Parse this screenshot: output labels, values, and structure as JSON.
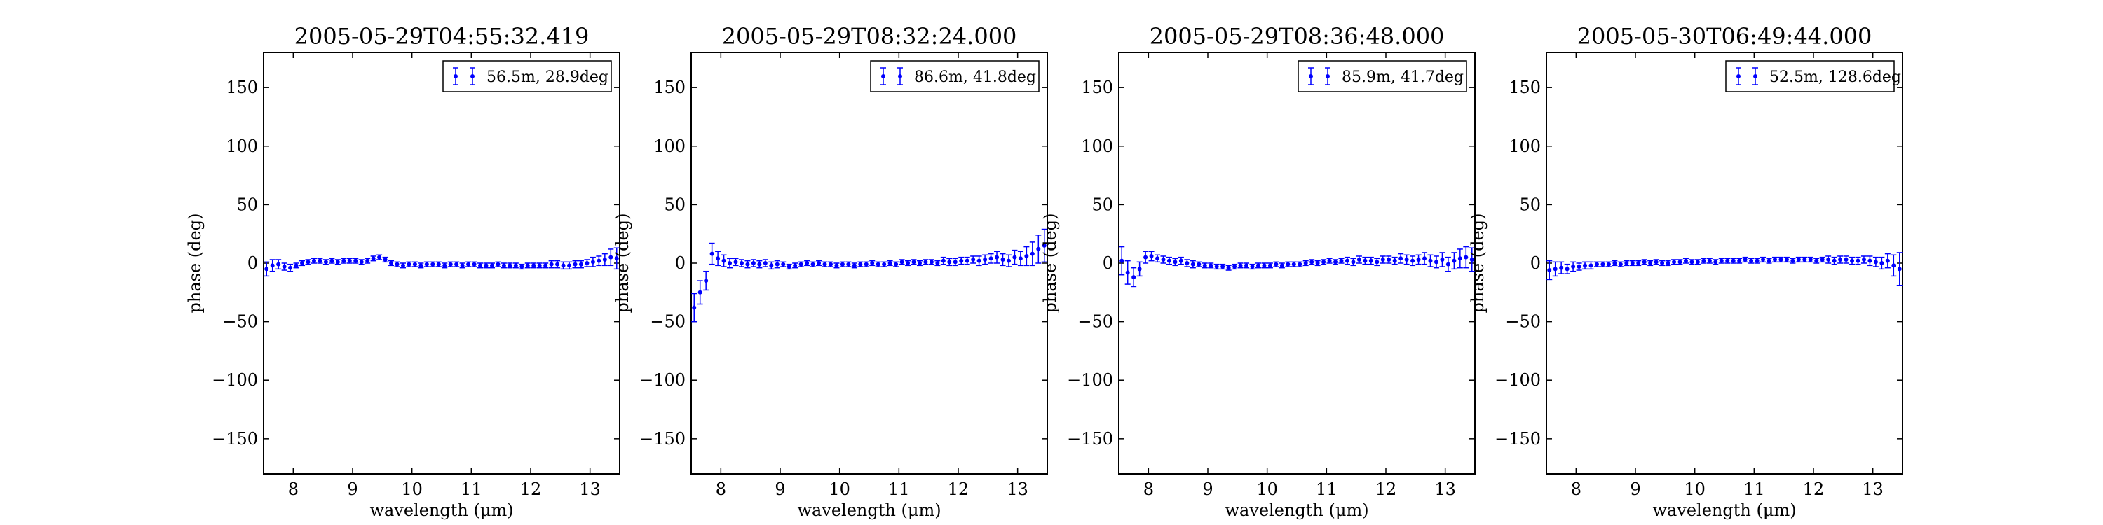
{
  "chart_data": [
    {
      "type": "scatter",
      "title": "2005-05-29T04:55:32.419",
      "xlabel": "wavelength (μm)",
      "ylabel": "phase (deg)",
      "xlim": [
        7.5,
        13.5
      ],
      "ylim": [
        -180,
        180
      ],
      "xticks": [
        "8",
        "9",
        "10",
        "11",
        "12",
        "13"
      ],
      "yticks": [
        "−150",
        "−100",
        "−50",
        "0",
        "50",
        "100",
        "150"
      ],
      "legend": "top-right",
      "grid": false,
      "color": "#0000ff",
      "series": [
        {
          "name": "56.5m, 28.9deg",
          "x": [
            7.55,
            7.65,
            7.75,
            7.85,
            7.95,
            8.05,
            8.15,
            8.25,
            8.35,
            8.45,
            8.55,
            8.65,
            8.75,
            8.85,
            8.95,
            9.05,
            9.15,
            9.25,
            9.35,
            9.45,
            9.55,
            9.65,
            9.75,
            9.85,
            9.95,
            10.05,
            10.15,
            10.25,
            10.35,
            10.45,
            10.55,
            10.65,
            10.75,
            10.85,
            10.95,
            11.05,
            11.15,
            11.25,
            11.35,
            11.45,
            11.55,
            11.65,
            11.75,
            11.85,
            11.95,
            12.05,
            12.15,
            12.25,
            12.35,
            12.45,
            12.55,
            12.65,
            12.75,
            12.85,
            12.95,
            13.05,
            13.15,
            13.25,
            13.35,
            13.45
          ],
          "y": [
            -5,
            -2,
            -1,
            -3,
            -4,
            -2,
            0,
            1,
            2,
            2,
            1,
            2,
            1,
            2,
            2,
            2,
            1,
            2,
            4,
            5,
            3,
            0,
            -1,
            -2,
            -1,
            -1,
            -2,
            -1,
            -1,
            -1,
            -2,
            -1,
            -1,
            -2,
            -1,
            -1,
            -2,
            -2,
            -2,
            -1,
            -2,
            -2,
            -2,
            -3,
            -2,
            -2,
            -2,
            -2,
            -1,
            -1,
            -2,
            -2,
            -1,
            -1,
            0,
            1,
            2,
            3,
            5,
            4
          ],
          "err": [
            6,
            5,
            4,
            3,
            3,
            2,
            2,
            2,
            2,
            2,
            2,
            2,
            2,
            2,
            2,
            2,
            2,
            2,
            2,
            2,
            2,
            2,
            2,
            2,
            2,
            2,
            2,
            2,
            2,
            2,
            2,
            2,
            2,
            2,
            2,
            2,
            2,
            2,
            2,
            2,
            2,
            2,
            2,
            2,
            2,
            2,
            2,
            2,
            3,
            3,
            3,
            3,
            3,
            3,
            3,
            4,
            4,
            5,
            7,
            9
          ]
        }
      ]
    },
    {
      "type": "scatter",
      "title": "2005-05-29T08:32:24.000",
      "xlabel": "wavelength (μm)",
      "ylabel": "phase (deg)",
      "xlim": [
        7.5,
        13.5
      ],
      "ylim": [
        -180,
        180
      ],
      "xticks": [
        "8",
        "9",
        "10",
        "11",
        "12",
        "13"
      ],
      "yticks": [
        "−150",
        "−100",
        "−50",
        "0",
        "50",
        "100",
        "150"
      ],
      "legend": "top-right",
      "grid": false,
      "color": "#0000ff",
      "series": [
        {
          "name": "86.6m, 41.8deg",
          "x": [
            7.55,
            7.65,
            7.75,
            7.85,
            7.95,
            8.05,
            8.15,
            8.25,
            8.35,
            8.45,
            8.55,
            8.65,
            8.75,
            8.85,
            8.95,
            9.05,
            9.15,
            9.25,
            9.35,
            9.45,
            9.55,
            9.65,
            9.75,
            9.85,
            9.95,
            10.05,
            10.15,
            10.25,
            10.35,
            10.45,
            10.55,
            10.65,
            10.75,
            10.85,
            10.95,
            11.05,
            11.15,
            11.25,
            11.35,
            11.45,
            11.55,
            11.65,
            11.75,
            11.85,
            11.95,
            12.05,
            12.15,
            12.25,
            12.35,
            12.45,
            12.55,
            12.65,
            12.75,
            12.85,
            12.95,
            13.05,
            13.15,
            13.25,
            13.35,
            13.45
          ],
          "y": [
            -38,
            -25,
            -15,
            8,
            4,
            2,
            0,
            1,
            0,
            -1,
            0,
            -1,
            0,
            -2,
            -1,
            -1,
            -3,
            -2,
            -1,
            0,
            -1,
            0,
            -1,
            -1,
            -2,
            -1,
            -1,
            -2,
            -1,
            -1,
            0,
            -1,
            -1,
            0,
            -1,
            1,
            0,
            1,
            0,
            1,
            1,
            0,
            2,
            1,
            1,
            2,
            2,
            3,
            2,
            3,
            4,
            5,
            3,
            2,
            5,
            4,
            6,
            8,
            12,
            15
          ],
          "err": [
            12,
            10,
            8,
            9,
            6,
            5,
            4,
            3,
            3,
            3,
            3,
            3,
            3,
            3,
            3,
            2,
            2,
            2,
            2,
            2,
            2,
            2,
            2,
            2,
            2,
            2,
            2,
            2,
            2,
            2,
            2,
            2,
            2,
            2,
            2,
            2,
            2,
            2,
            2,
            2,
            2,
            2,
            3,
            3,
            3,
            3,
            3,
            3,
            4,
            4,
            4,
            5,
            5,
            5,
            6,
            6,
            8,
            10,
            12,
            14
          ]
        }
      ]
    },
    {
      "type": "scatter",
      "title": "2005-05-29T08:36:48.000",
      "xlabel": "wavelength (μm)",
      "ylabel": "phase (deg)",
      "xlim": [
        7.5,
        13.5
      ],
      "ylim": [
        -180,
        180
      ],
      "xticks": [
        "8",
        "9",
        "10",
        "11",
        "12",
        "13"
      ],
      "yticks": [
        "−150",
        "−100",
        "−50",
        "0",
        "50",
        "100",
        "150"
      ],
      "legend": "top-right",
      "grid": false,
      "color": "#0000ff",
      "series": [
        {
          "name": "85.9m, 41.7deg",
          "x": [
            7.55,
            7.65,
            7.75,
            7.85,
            7.95,
            8.05,
            8.15,
            8.25,
            8.35,
            8.45,
            8.55,
            8.65,
            8.75,
            8.85,
            8.95,
            9.05,
            9.15,
            9.25,
            9.35,
            9.45,
            9.55,
            9.65,
            9.75,
            9.85,
            9.95,
            10.05,
            10.15,
            10.25,
            10.35,
            10.45,
            10.55,
            10.65,
            10.75,
            10.85,
            10.95,
            11.05,
            11.15,
            11.25,
            11.35,
            11.45,
            11.55,
            11.65,
            11.75,
            11.85,
            11.95,
            12.05,
            12.15,
            12.25,
            12.35,
            12.45,
            12.55,
            12.65,
            12.75,
            12.85,
            12.95,
            13.05,
            13.15,
            13.25,
            13.35,
            13.45
          ],
          "y": [
            2,
            -8,
            -12,
            -5,
            5,
            6,
            4,
            3,
            2,
            1,
            2,
            0,
            -1,
            -1,
            -2,
            -2,
            -3,
            -3,
            -4,
            -3,
            -2,
            -2,
            -3,
            -2,
            -2,
            -2,
            -1,
            -2,
            -1,
            -1,
            -1,
            0,
            1,
            0,
            1,
            2,
            1,
            2,
            2,
            1,
            3,
            2,
            2,
            1,
            3,
            3,
            2,
            4,
            3,
            2,
            3,
            4,
            2,
            1,
            3,
            -1,
            2,
            4,
            5,
            3
          ],
          "err": [
            12,
            10,
            8,
            6,
            5,
            4,
            3,
            3,
            3,
            3,
            3,
            3,
            3,
            2,
            2,
            2,
            2,
            2,
            2,
            2,
            2,
            2,
            2,
            2,
            2,
            2,
            2,
            2,
            2,
            2,
            2,
            2,
            2,
            2,
            2,
            2,
            2,
            2,
            3,
            3,
            3,
            3,
            3,
            3,
            3,
            3,
            3,
            4,
            4,
            4,
            4,
            5,
            5,
            5,
            6,
            6,
            7,
            8,
            9,
            10
          ]
        }
      ]
    },
    {
      "type": "scatter",
      "title": "2005-05-30T06:49:44.000",
      "xlabel": "wavelength (μm)",
      "ylabel": "phase (deg)",
      "xlim": [
        7.5,
        13.5
      ],
      "ylim": [
        -180,
        180
      ],
      "xticks": [
        "8",
        "9",
        "10",
        "11",
        "12",
        "13"
      ],
      "yticks": [
        "−150",
        "−100",
        "−50",
        "0",
        "50",
        "100",
        "150"
      ],
      "legend": "top-right",
      "grid": false,
      "color": "#0000ff",
      "series": [
        {
          "name": "52.5m, 128.6deg",
          "x": [
            7.55,
            7.65,
            7.75,
            7.85,
            7.95,
            8.05,
            8.15,
            8.25,
            8.35,
            8.45,
            8.55,
            8.65,
            8.75,
            8.85,
            8.95,
            9.05,
            9.15,
            9.25,
            9.35,
            9.45,
            9.55,
            9.65,
            9.75,
            9.85,
            9.95,
            10.05,
            10.15,
            10.25,
            10.35,
            10.45,
            10.55,
            10.65,
            10.75,
            10.85,
            10.95,
            11.05,
            11.15,
            11.25,
            11.35,
            11.45,
            11.55,
            11.65,
            11.75,
            11.85,
            11.95,
            12.05,
            12.15,
            12.25,
            12.35,
            12.45,
            12.55,
            12.65,
            12.75,
            12.85,
            12.95,
            13.05,
            13.15,
            13.25,
            13.35,
            13.45
          ],
          "y": [
            -6,
            -5,
            -4,
            -5,
            -3,
            -3,
            -2,
            -2,
            -1,
            -1,
            -1,
            0,
            -1,
            0,
            0,
            0,
            1,
            0,
            1,
            0,
            0,
            1,
            1,
            2,
            1,
            1,
            2,
            2,
            1,
            2,
            2,
            2,
            2,
            3,
            2,
            2,
            3,
            2,
            3,
            3,
            3,
            2,
            3,
            3,
            3,
            2,
            3,
            3,
            2,
            3,
            3,
            2,
            2,
            3,
            2,
            1,
            0,
            2,
            -2,
            -5
          ],
          "err": [
            8,
            6,
            5,
            4,
            4,
            3,
            3,
            3,
            2,
            2,
            2,
            2,
            2,
            2,
            2,
            2,
            2,
            2,
            2,
            2,
            2,
            2,
            2,
            2,
            2,
            2,
            2,
            2,
            2,
            2,
            2,
            2,
            2,
            2,
            2,
            2,
            2,
            2,
            2,
            2,
            2,
            2,
            2,
            2,
            2,
            2,
            2,
            3,
            3,
            3,
            3,
            3,
            3,
            3,
            4,
            4,
            5,
            6,
            9,
            14
          ]
        }
      ]
    }
  ]
}
